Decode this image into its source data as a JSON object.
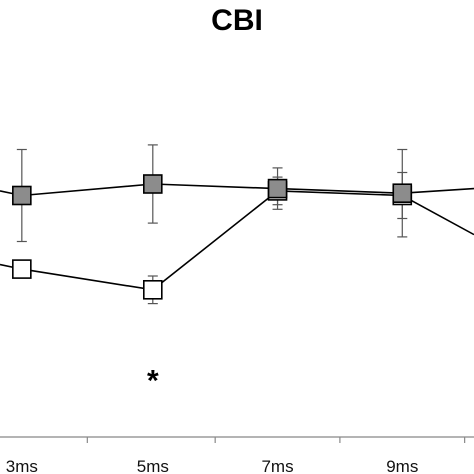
{
  "chart_data": {
    "type": "line",
    "title": "CBI",
    "xlabel": "",
    "ylabel": "",
    "categories": [
      "3ms",
      "5ms",
      "7ms",
      "9ms"
    ],
    "x_positions": [
      2.9,
      5,
      7,
      9
    ],
    "x_range": [
      2.55,
      10.15
    ],
    "y_range": [
      0,
      1.9
    ],
    "grid": false,
    "series": [
      {
        "marker": "square-filled",
        "color": "#8c8c8c",
        "x": [
          2.55,
          2.9,
          5,
          7,
          9,
          10.15
        ],
        "y": [
          1.07,
          1.05,
          1.1,
          1.08,
          1.06,
          1.08
        ],
        "err": [
          null,
          0.2,
          0.17,
          0.09,
          0.19,
          null
        ],
        "marker_shown": [
          false,
          true,
          true,
          true,
          true,
          false
        ]
      },
      {
        "marker": "square-open",
        "color": "#ffffff",
        "x": [
          2.55,
          2.9,
          5,
          7,
          9,
          10.15
        ],
        "y": [
          0.75,
          0.73,
          0.64,
          1.07,
          1.05,
          0.88
        ],
        "err": [
          null,
          null,
          0.06,
          0.06,
          0.1,
          null
        ],
        "marker_shown": [
          false,
          true,
          true,
          true,
          true,
          false
        ]
      }
    ],
    "annotations": [
      {
        "text": "*",
        "x": 5,
        "y": 0.28
      }
    ]
  }
}
